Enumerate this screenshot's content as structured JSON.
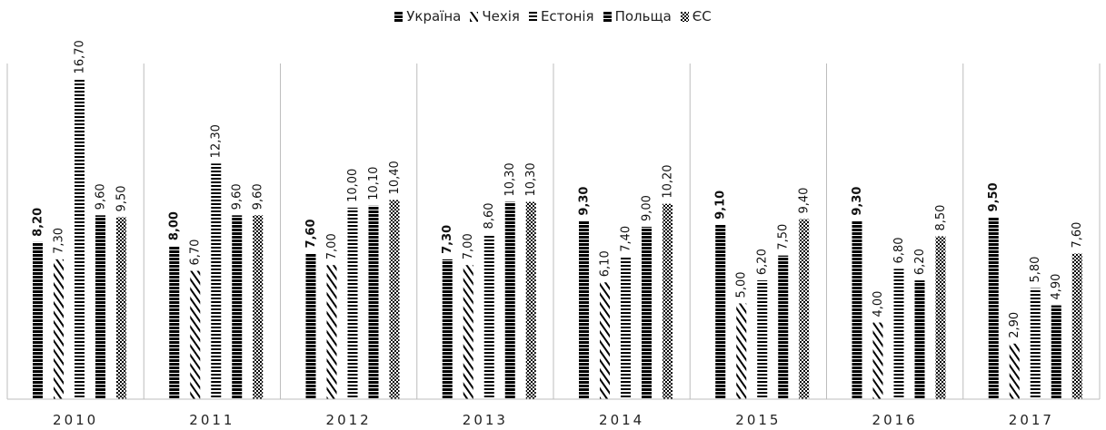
{
  "chart_data": {
    "type": "bar",
    "categories": [
      "2010",
      "2011",
      "2012",
      "2013",
      "2014",
      "2015",
      "2016",
      "2017"
    ],
    "series": [
      {
        "name": "Україна",
        "values": [
          8.2,
          8.0,
          7.6,
          7.3,
          9.3,
          9.1,
          9.3,
          9.5
        ],
        "labels": [
          "8,20",
          "8,00",
          "7,60",
          "7,30",
          "9,30",
          "9,10",
          "9,30",
          "9,50"
        ],
        "pattern": "solid-stripes",
        "color": "#000000"
      },
      {
        "name": "Чехія",
        "values": [
          7.3,
          6.7,
          7.0,
          7.0,
          6.1,
          5.0,
          4.0,
          2.9
        ],
        "labels": [
          "7,30",
          "6,70",
          "7,00",
          "7,00",
          "6,10",
          "5,00",
          "4,00",
          "2,90"
        ],
        "pattern": "diagonal",
        "color": "#000000"
      },
      {
        "name": "Естонія",
        "values": [
          16.7,
          12.3,
          10.0,
          8.6,
          7.4,
          6.2,
          6.8,
          5.8
        ],
        "labels": [
          "16,70",
          "12,30",
          "10,00",
          "8,60",
          "7,40",
          "6,20",
          "6,80",
          "5,80"
        ],
        "pattern": "horizontal-thin",
        "color": "#000000"
      },
      {
        "name": "Польща",
        "values": [
          9.6,
          9.6,
          10.1,
          10.3,
          9.0,
          7.5,
          6.2,
          4.9
        ],
        "labels": [
          "9,60",
          "9,60",
          "10,10",
          "10,30",
          "9,00",
          "7,50",
          "6,20",
          "4,90"
        ],
        "pattern": "horizontal-thick",
        "color": "#000000"
      },
      {
        "name": "ЄС",
        "values": [
          9.5,
          9.6,
          10.4,
          10.3,
          10.2,
          9.4,
          8.5,
          7.6
        ],
        "labels": [
          "9,50",
          "9,60",
          "10,40",
          "10,30",
          "10,20",
          "9,40",
          "8,50",
          "7,60"
        ],
        "pattern": "checker",
        "color": "#000000"
      }
    ],
    "ylim": [
      0,
      18
    ],
    "grid": false,
    "legend": "top-center",
    "xlabel": "",
    "ylabel": ""
  }
}
